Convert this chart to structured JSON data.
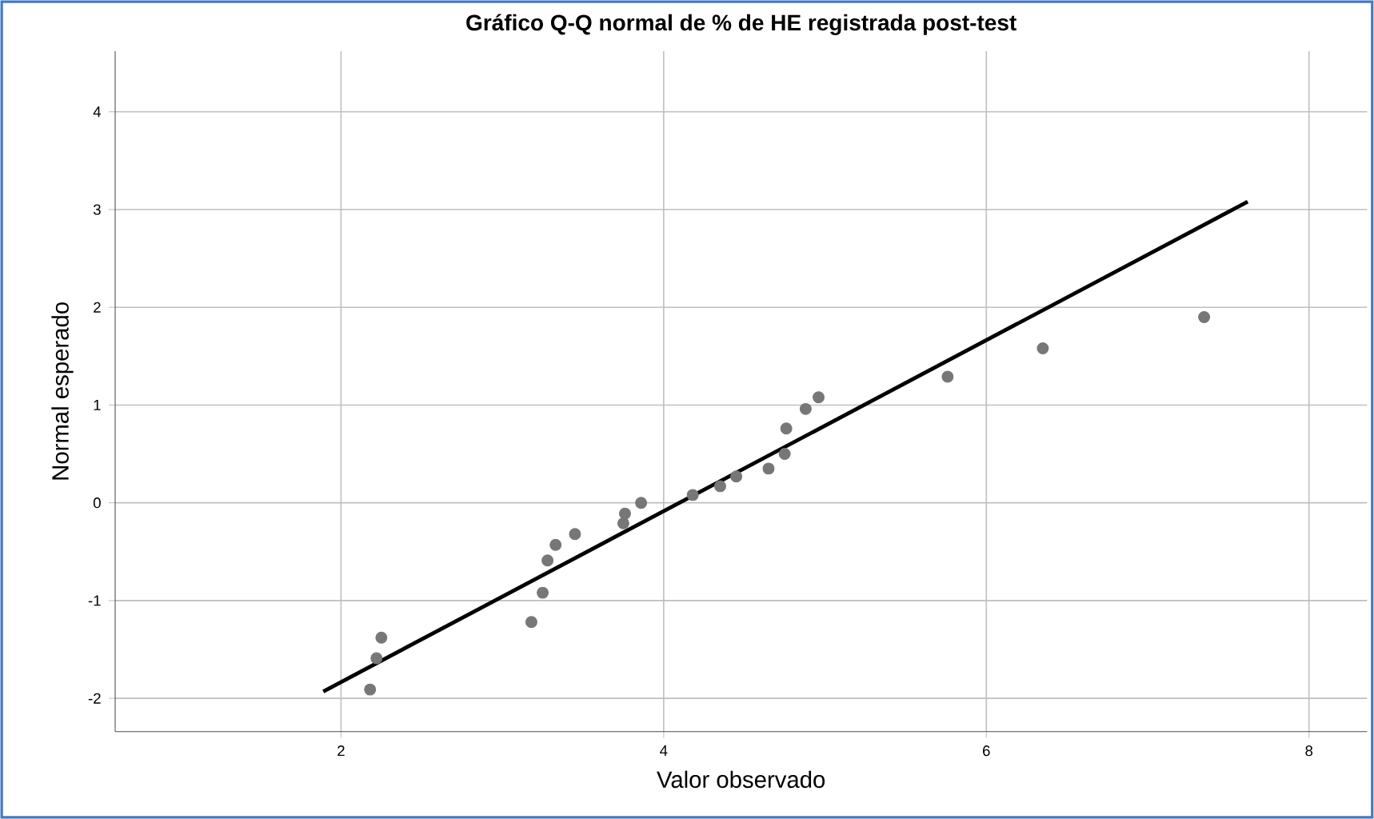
{
  "chart_data": {
    "type": "scatter",
    "title": "Gráfico Q-Q normal de % de HE registrada post-test",
    "xlabel": "Valor observado",
    "ylabel": "Normal esperado",
    "xlim": [
      0.6,
      8.36
    ],
    "ylim": [
      -2.34,
      4.62
    ],
    "xticks": [
      2,
      4,
      6,
      8
    ],
    "yticks": [
      -2,
      -1,
      0,
      1,
      2,
      3,
      4
    ],
    "grid": true,
    "series": [
      {
        "marker": "circle",
        "color": "#777777",
        "x": [
          2.18,
          2.22,
          2.25,
          3.18,
          3.25,
          3.28,
          3.33,
          3.45,
          3.75,
          3.76,
          3.86,
          4.18,
          4.35,
          4.45,
          4.65,
          4.75,
          4.76,
          4.88,
          4.96,
          5.76,
          6.35,
          7.35
        ],
        "values": [
          -1.91,
          -1.59,
          -1.38,
          -1.22,
          -0.92,
          -0.59,
          -0.43,
          -0.32,
          -0.21,
          -0.11,
          0.0,
          0.08,
          0.17,
          0.27,
          0.35,
          0.5,
          0.76,
          0.96,
          1.08,
          1.29,
          1.58,
          1.9
        ]
      },
      {
        "type": "line",
        "marker": "none",
        "color": "#000000",
        "x": [
          1.89,
          7.62
        ],
        "values": [
          -1.93,
          3.08
        ]
      }
    ]
  }
}
